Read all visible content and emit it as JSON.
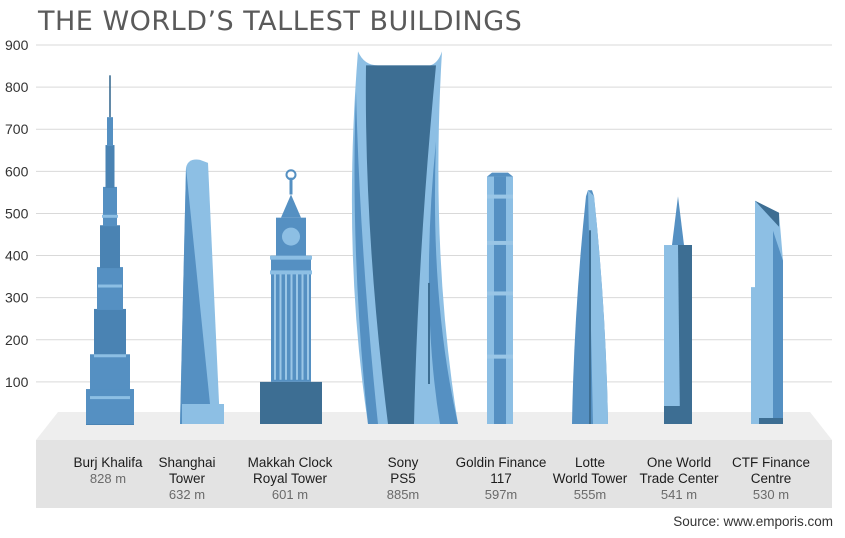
{
  "title": "THE WORLD’S TALLEST BUILDINGS",
  "source": "Source: www.emporis.com",
  "colors": {
    "light": "#8dbfe4",
    "mid": "#5590c2",
    "dark": "#3d6e93",
    "ground": "#e3e3e3",
    "grid": "#d9d9d9"
  },
  "chart_data": {
    "type": "bar",
    "title": "THE WORLD’S TALLEST BUILDINGS",
    "ylim": [
      0,
      900
    ],
    "yticks": [
      100,
      200,
      300,
      400,
      500,
      600,
      700,
      800,
      900
    ],
    "grid": true,
    "categories": [
      {
        "name": [
          "Burj Khalifa"
        ],
        "height_label": "828 m",
        "value": 828
      },
      {
        "name": [
          "Shanghai",
          "Tower"
        ],
        "height_label": "632 m",
        "value": 632
      },
      {
        "name": [
          "Makkah Clock",
          "Royal Tower"
        ],
        "height_label": "601 m",
        "value": 601
      },
      {
        "name": [
          "Sony",
          "PS5"
        ],
        "height_label": "885m",
        "value": 885
      },
      {
        "name": [
          "Goldin Finance",
          "117"
        ],
        "height_label": "597m",
        "value": 597
      },
      {
        "name": [
          "Lotte",
          "World Tower"
        ],
        "height_label": "555m",
        "value": 555
      },
      {
        "name": [
          "One World",
          "Trade Center"
        ],
        "height_label": "541 m",
        "value": 541
      },
      {
        "name": [
          "CTF Finance",
          "Centre"
        ],
        "height_label": "530 m",
        "value": 530
      }
    ]
  }
}
